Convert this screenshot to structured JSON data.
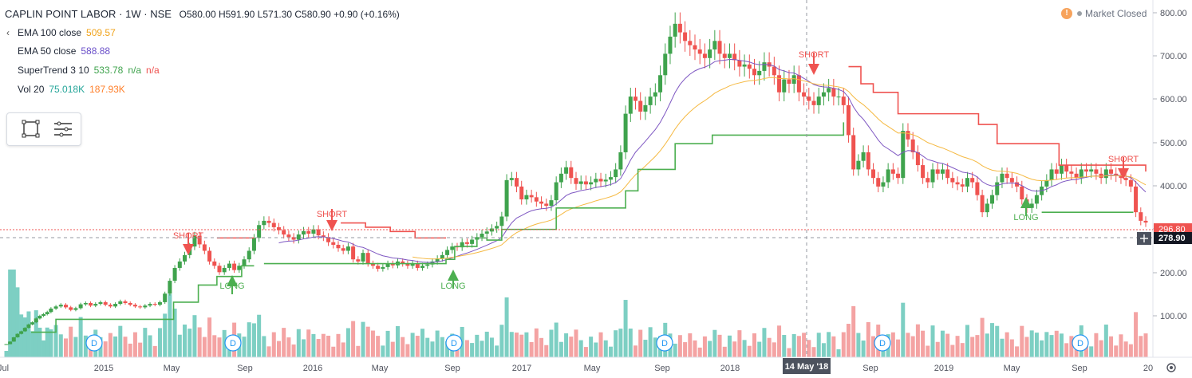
{
  "header": {
    "symbol": "CAPLIN POINT LABOR",
    "interval": "1W",
    "exchange": "NSE",
    "separator": "·",
    "ohlc": "O580.00  H591.90  L571.30  C580.90  +0.90 (+0.16%)"
  },
  "indicators": [
    {
      "name": "EMA 100 close",
      "values": [
        "509.57"
      ],
      "colors": [
        "#f0a31b"
      ]
    },
    {
      "name": "EMA 50 close",
      "values": [
        "588.88"
      ],
      "colors": [
        "#6a4fc9"
      ]
    },
    {
      "name": "SuperTrend 3 10",
      "values": [
        "533.78",
        "n/a",
        "n/a"
      ],
      "colors": [
        "#3fa34d",
        "#3fa34d",
        "#ef5350"
      ]
    },
    {
      "name": "Vol 20",
      "values": [
        "75.018K",
        "187.93K"
      ],
      "colors": [
        "#26a69a",
        "#ff7f2a"
      ]
    }
  ],
  "market_status": "Market Closed",
  "warning_icon": "!",
  "colors": {
    "up": "#3fa34d",
    "down": "#ef5350",
    "ema100": "#f5b942",
    "ema50": "#7e57c2",
    "st_up": "#4caf50",
    "st_down": "#ef5350",
    "vol_up": "#7dcfc3",
    "vol_down": "#f4a3a3"
  },
  "chart_data": {
    "type": "candlestick",
    "y_axis": {
      "ticks": [
        "100.00",
        "200.00",
        "300.00",
        "400.00",
        "500.00",
        "600.00",
        "700.00",
        "800.00"
      ],
      "range": [
        0,
        830
      ]
    },
    "x_axis": {
      "labels": [
        "Jul",
        "2015",
        "May",
        "Sep",
        "2016",
        "May",
        "Sep",
        "2017",
        "May",
        "Sep",
        "2018",
        "14 May '18",
        "Sep",
        "2019",
        "May",
        "Sep",
        "20"
      ]
    },
    "price_labels": {
      "last": "296.80",
      "crosshair": "278.90"
    },
    "signals": [
      {
        "label": "SHORT",
        "date": "Jul 2015",
        "value": 250,
        "type": "short"
      },
      {
        "label": "LONG",
        "date": "Aug 2015",
        "value": 210,
        "type": "long"
      },
      {
        "label": "SHORT",
        "date": "Jan 2016",
        "value": 290,
        "type": "short"
      },
      {
        "label": "LONG",
        "date": "Sep 2016",
        "value": 200,
        "type": "long"
      },
      {
        "label": "SHORT",
        "date": "May 2018",
        "value": 650,
        "type": "short"
      },
      {
        "label": "LONG",
        "date": "Jun 2019",
        "value": 365,
        "type": "long"
      },
      {
        "label": "SHORT",
        "date": "Dec 2019",
        "value": 415,
        "type": "short"
      }
    ],
    "dividends": [
      "Jan 2015",
      "Sep 2015",
      "Sep 2016",
      "Sep 2017",
      "Sep 2018",
      "Sep 2019"
    ],
    "dividend_label": "D",
    "series_points": {
      "close": [
        [
          0,
          12
        ],
        [
          0.03,
          18
        ],
        [
          0.06,
          28
        ],
        [
          0.09,
          36
        ],
        [
          0.12,
          42
        ],
        [
          0.15,
          50
        ],
        [
          0.18,
          58
        ],
        [
          0.21,
          63
        ],
        [
          0.24,
          72
        ],
        [
          0.27,
          78
        ],
        [
          0.3,
          82
        ],
        [
          0.33,
          87
        ],
        [
          0.36,
          95
        ],
        [
          0.4,
          100
        ],
        [
          0.44,
          104
        ],
        [
          0.48,
          98
        ],
        [
          0.52,
          92
        ],
        [
          0.56,
          96
        ],
        [
          0.6,
          105
        ],
        [
          0.64,
          108
        ],
        [
          0.68,
          102
        ],
        [
          0.72,
          106
        ],
        [
          0.76,
          110
        ],
        [
          0.8,
          104
        ],
        [
          0.84,
          100
        ],
        [
          0.88,
          106
        ],
        [
          0.92,
          112
        ],
        [
          0.96,
          108
        ],
        [
          1.0,
          104
        ],
        [
          1.04,
          100
        ],
        [
          1.08,
          98
        ],
        [
          1.12,
          102
        ],
        [
          1.16,
          106
        ],
        [
          1.2,
          104
        ],
        [
          1.24,
          110
        ],
        [
          1.28,
          130
        ],
        [
          1.32,
          160
        ],
        [
          1.36,
          190
        ],
        [
          1.4,
          205
        ],
        [
          1.44,
          220
        ],
        [
          1.48,
          240
        ],
        [
          1.52,
          265
        ],
        [
          1.56,
          245
        ],
        [
          1.6,
          230
        ],
        [
          1.64,
          205
        ],
        [
          1.68,
          195
        ],
        [
          1.72,
          180
        ],
        [
          1.76,
          190
        ],
        [
          1.8,
          200
        ],
        [
          1.84,
          185
        ],
        [
          1.88,
          195
        ],
        [
          1.92,
          210
        ],
        [
          1.96,
          230
        ],
        [
          2.0,
          260
        ],
        [
          2.04,
          290
        ],
        [
          2.08,
          300
        ],
        [
          2.12,
          295
        ],
        [
          2.16,
          285
        ],
        [
          2.2,
          278
        ],
        [
          2.24,
          268
        ],
        [
          2.28,
          262
        ],
        [
          2.32,
          256
        ],
        [
          2.36,
          268
        ],
        [
          2.4,
          276
        ],
        [
          2.44,
          270
        ],
        [
          2.48,
          280
        ],
        [
          2.52,
          266
        ],
        [
          2.56,
          262
        ],
        [
          2.6,
          250
        ],
        [
          2.64,
          244
        ],
        [
          2.68,
          236
        ],
        [
          2.72,
          230
        ],
        [
          2.76,
          240
        ],
        [
          2.8,
          210
        ],
        [
          2.84,
          205
        ],
        [
          2.88,
          225
        ],
        [
          2.92,
          200
        ],
        [
          2.96,
          195
        ],
        [
          3.0,
          188
        ],
        [
          3.04,
          192
        ],
        [
          3.08,
          200
        ],
        [
          3.12,
          196
        ],
        [
          3.16,
          205
        ],
        [
          3.2,
          200
        ],
        [
          3.24,
          195
        ],
        [
          3.28,
          200
        ],
        [
          3.32,
          190
        ],
        [
          3.36,
          195
        ],
        [
          3.4,
          198
        ],
        [
          3.44,
          205
        ],
        [
          3.48,
          212
        ],
        [
          3.52,
          220
        ],
        [
          3.56,
          232
        ],
        [
          3.6,
          240
        ],
        [
          3.64,
          238
        ],
        [
          3.68,
          250
        ],
        [
          3.72,
          246
        ],
        [
          3.76,
          256
        ],
        [
          3.8,
          262
        ],
        [
          3.84,
          270
        ],
        [
          3.88,
          275
        ],
        [
          3.92,
          282
        ],
        [
          3.96,
          288
        ],
        [
          4.0,
          310
        ],
        [
          4.04,
          395
        ],
        [
          4.08,
          400
        ],
        [
          4.12,
          380
        ],
        [
          4.16,
          350
        ],
        [
          4.2,
          360
        ],
        [
          4.24,
          355
        ],
        [
          4.28,
          345
        ],
        [
          4.32,
          340
        ],
        [
          4.36,
          335
        ],
        [
          4.4,
          348
        ],
        [
          4.44,
          390
        ],
        [
          4.48,
          410
        ],
        [
          4.52,
          425
        ],
        [
          4.56,
          400
        ],
        [
          4.6,
          386
        ],
        [
          4.64,
          392
        ],
        [
          4.68,
          385
        ],
        [
          4.72,
          390
        ],
        [
          4.76,
          398
        ],
        [
          4.8,
          392
        ],
        [
          4.84,
          396
        ],
        [
          4.88,
          402
        ],
        [
          4.92,
          420
        ],
        [
          4.96,
          460
        ],
        [
          5.0,
          550
        ],
        [
          5.04,
          590
        ],
        [
          5.08,
          580
        ],
        [
          5.12,
          555
        ],
        [
          5.16,
          570
        ],
        [
          5.2,
          590
        ],
        [
          5.24,
          600
        ],
        [
          5.28,
          640
        ],
        [
          5.32,
          690
        ],
        [
          5.36,
          730
        ],
        [
          5.4,
          760
        ],
        [
          5.44,
          740
        ],
        [
          5.48,
          720
        ],
        [
          5.52,
          710
        ],
        [
          5.56,
          700
        ],
        [
          5.6,
          690
        ],
        [
          5.64,
          680
        ],
        [
          5.68,
          700
        ],
        [
          5.72,
          720
        ],
        [
          5.76,
          690
        ],
        [
          5.8,
          680
        ],
        [
          5.84,
          690
        ],
        [
          5.88,
          675
        ],
        [
          5.92,
          660
        ],
        [
          5.96,
          665
        ],
        [
          6.0,
          655
        ],
        [
          6.04,
          640
        ],
        [
          6.08,
          650
        ],
        [
          6.12,
          670
        ],
        [
          6.16,
          660
        ],
        [
          6.2,
          640
        ],
        [
          6.24,
          600
        ],
        [
          6.28,
          630
        ],
        [
          6.32,
          620
        ],
        [
          6.36,
          640
        ],
        [
          6.4,
          600
        ],
        [
          6.44,
          590
        ],
        [
          6.48,
          580
        ],
        [
          6.52,
          570
        ],
        [
          6.56,
          590
        ],
        [
          6.6,
          600
        ],
        [
          6.64,
          610
        ],
        [
          6.68,
          590
        ],
        [
          6.72,
          590
        ],
        [
          6.76,
          570
        ],
        [
          6.8,
          500
        ],
        [
          6.84,
          420
        ],
        [
          6.88,
          440
        ],
        [
          6.92,
          460
        ],
        [
          6.96,
          420
        ],
        [
          7.0,
          400
        ],
        [
          7.04,
          380
        ],
        [
          7.08,
          390
        ],
        [
          7.12,
          420
        ],
        [
          7.16,
          410
        ],
        [
          7.2,
          400
        ],
        [
          7.24,
          510
        ],
        [
          7.28,
          490
        ],
        [
          7.32,
          460
        ],
        [
          7.36,
          430
        ],
        [
          7.4,
          400
        ],
        [
          7.44,
          390
        ],
        [
          7.48,
          420
        ],
        [
          7.52,
          410
        ],
        [
          7.56,
          420
        ],
        [
          7.6,
          400
        ],
        [
          7.64,
          390
        ],
        [
          7.68,
          385
        ],
        [
          7.72,
          380
        ],
        [
          7.76,
          400
        ],
        [
          7.8,
          390
        ],
        [
          7.84,
          360
        ],
        [
          7.88,
          320
        ],
        [
          7.92,
          340
        ],
        [
          7.96,
          360
        ],
        [
          8.0,
          390
        ],
        [
          8.04,
          410
        ],
        [
          8.08,
          400
        ],
        [
          8.12,
          390
        ],
        [
          8.16,
          380
        ],
        [
          8.2,
          350
        ],
        [
          8.24,
          330
        ],
        [
          8.28,
          340
        ],
        [
          8.32,
          360
        ],
        [
          8.36,
          380
        ],
        [
          8.4,
          395
        ],
        [
          8.44,
          420
        ],
        [
          8.48,
          410
        ],
        [
          8.52,
          430
        ],
        [
          8.56,
          415
        ],
        [
          8.6,
          410
        ],
        [
          8.64,
          400
        ],
        [
          8.68,
          420
        ],
        [
          8.72,
          415
        ],
        [
          8.76,
          420
        ],
        [
          8.8,
          410
        ],
        [
          8.84,
          400
        ],
        [
          8.88,
          420
        ],
        [
          8.92,
          410
        ],
        [
          8.96,
          405
        ],
        [
          9.0,
          400
        ],
        [
          9.04,
          395
        ],
        [
          9.08,
          380
        ],
        [
          9.12,
          320
        ],
        [
          9.16,
          300
        ],
        [
          9.2,
          296
        ]
      ]
    }
  }
}
